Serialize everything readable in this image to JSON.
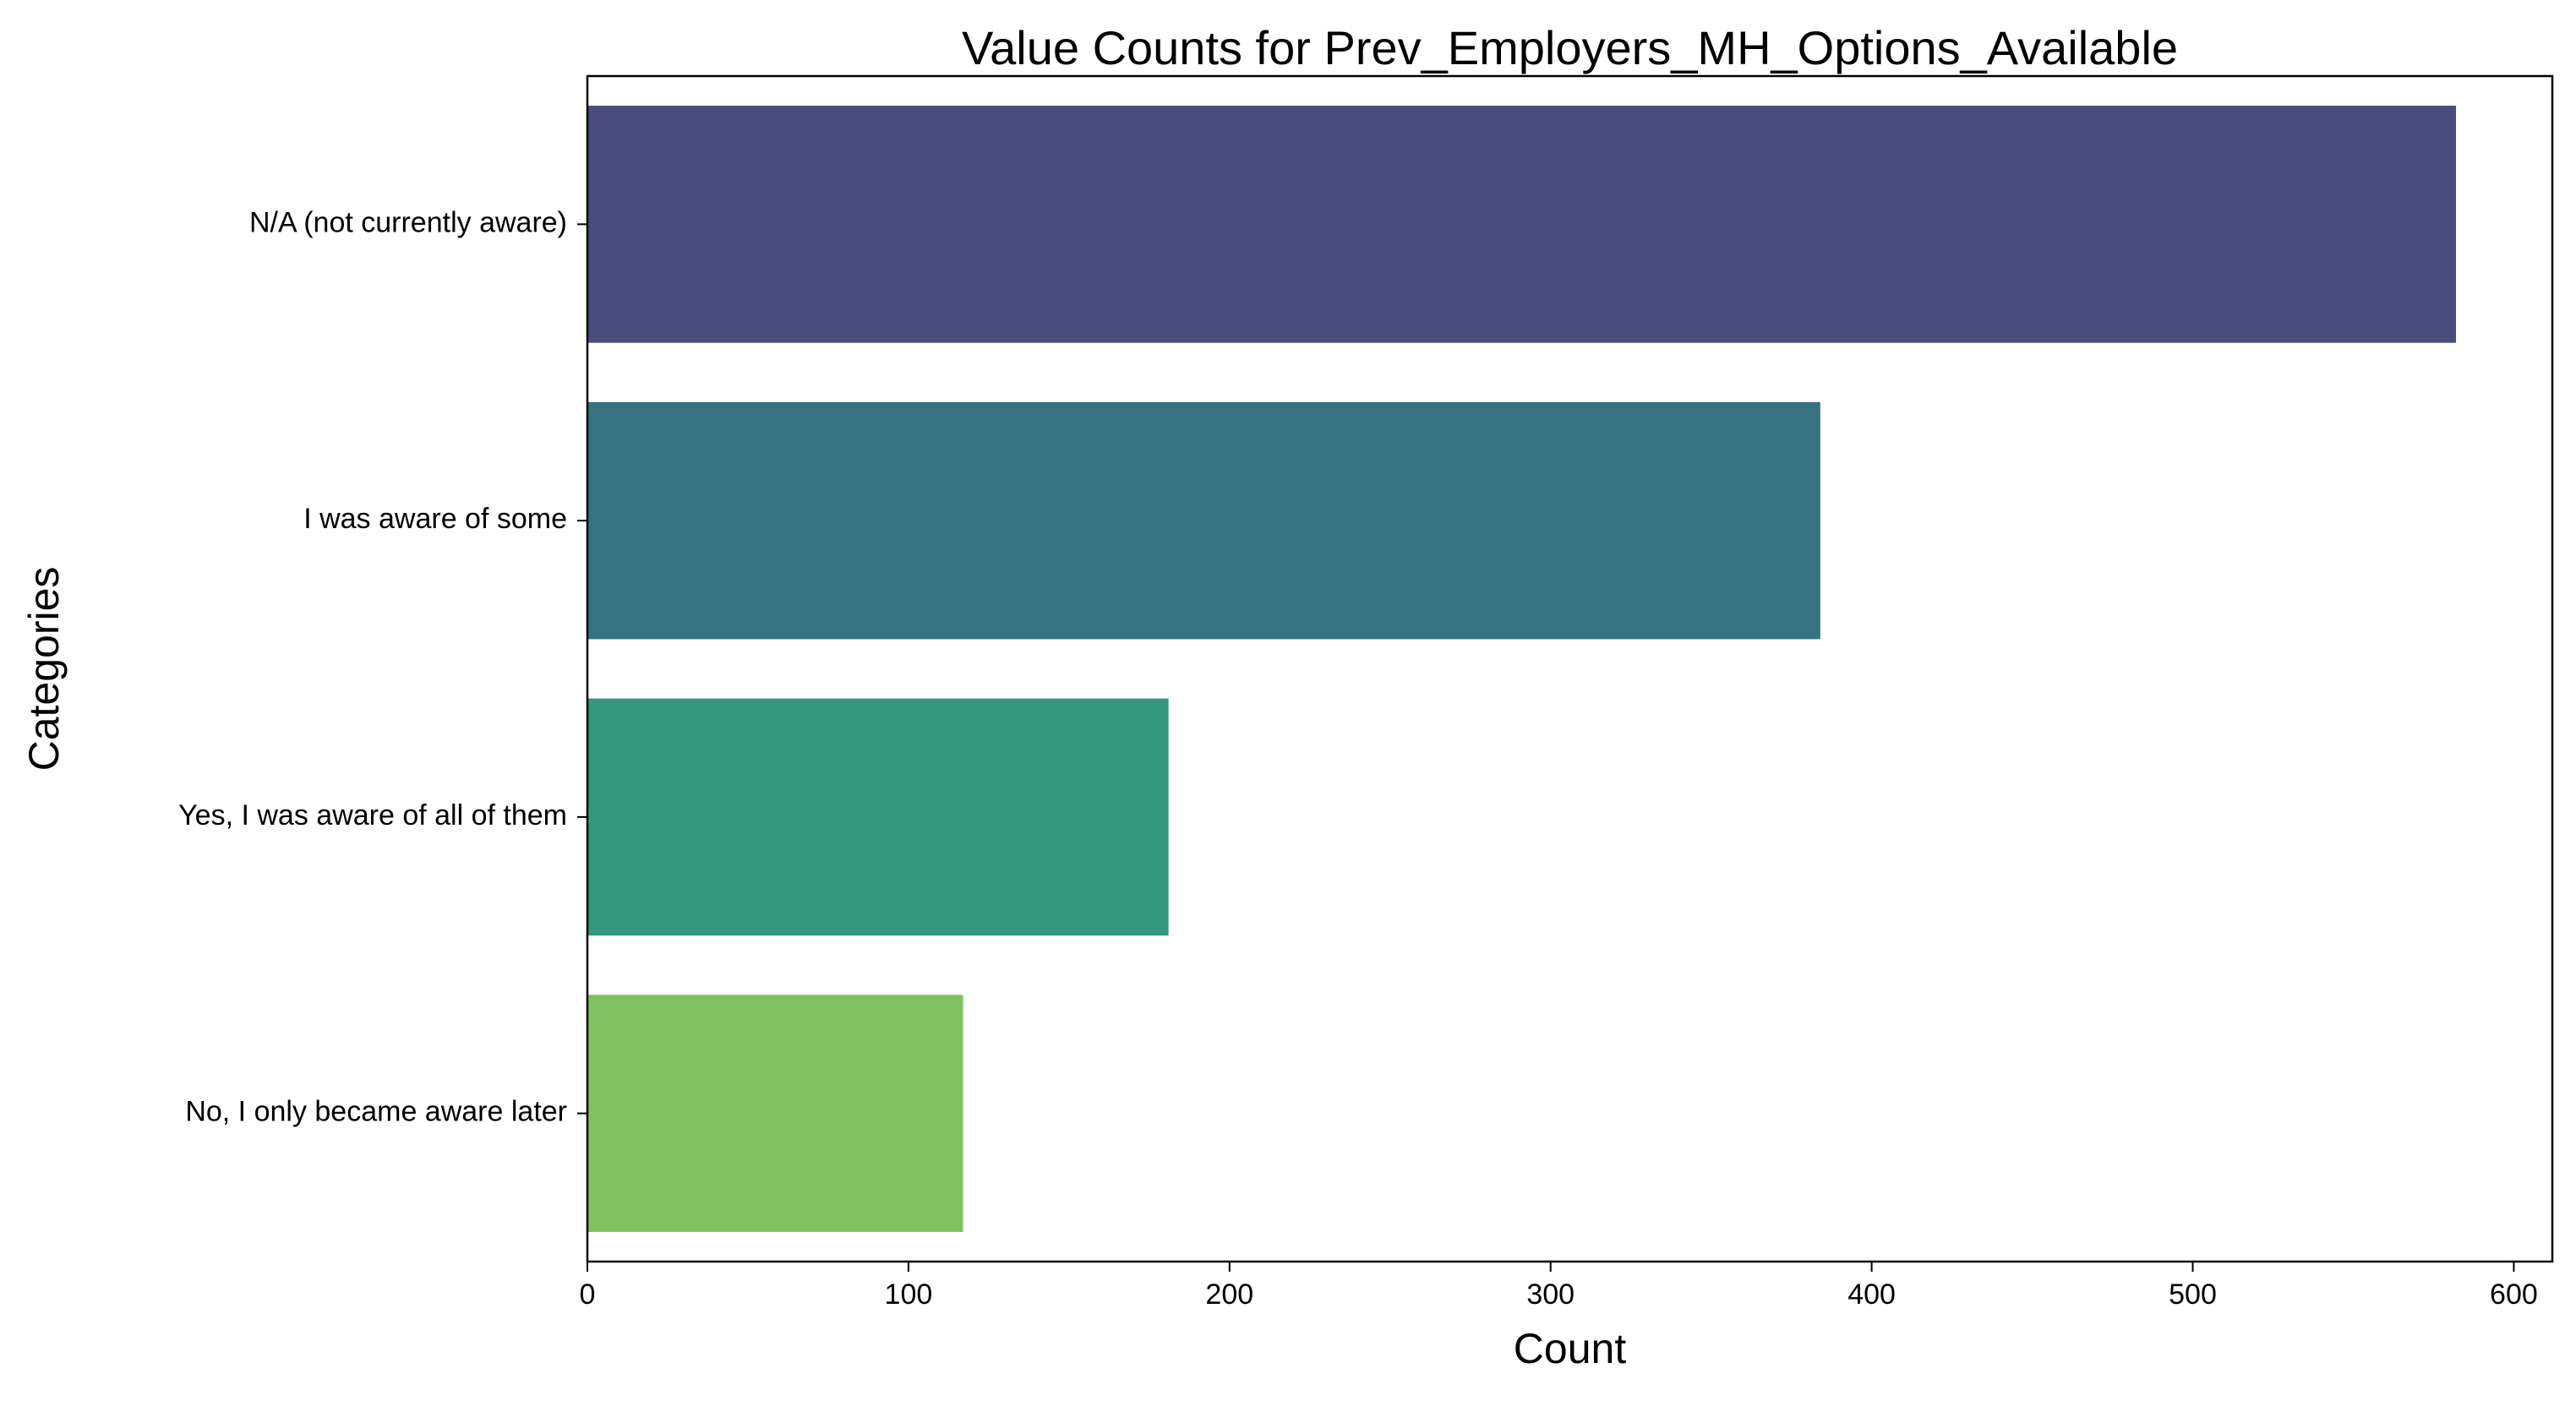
{
  "chart_data": {
    "type": "bar",
    "orientation": "horizontal",
    "title": "Value Counts for Prev_Employers_MH_Options_Available",
    "xlabel": "Count",
    "ylabel": "Categories",
    "categories": [
      "N/A (not currently aware)",
      "I was aware of some",
      "Yes, I was aware of all of them",
      "No, I only became aware later"
    ],
    "values": [
      582,
      384,
      181,
      117
    ],
    "colors": [
      "#4a4d7c",
      "#367280",
      "#35977c",
      "#80c161"
    ],
    "xlim": [
      0,
      612
    ],
    "xticks": [
      0,
      100,
      200,
      300,
      400,
      500,
      600
    ],
    "grid": false,
    "legend": "none"
  }
}
